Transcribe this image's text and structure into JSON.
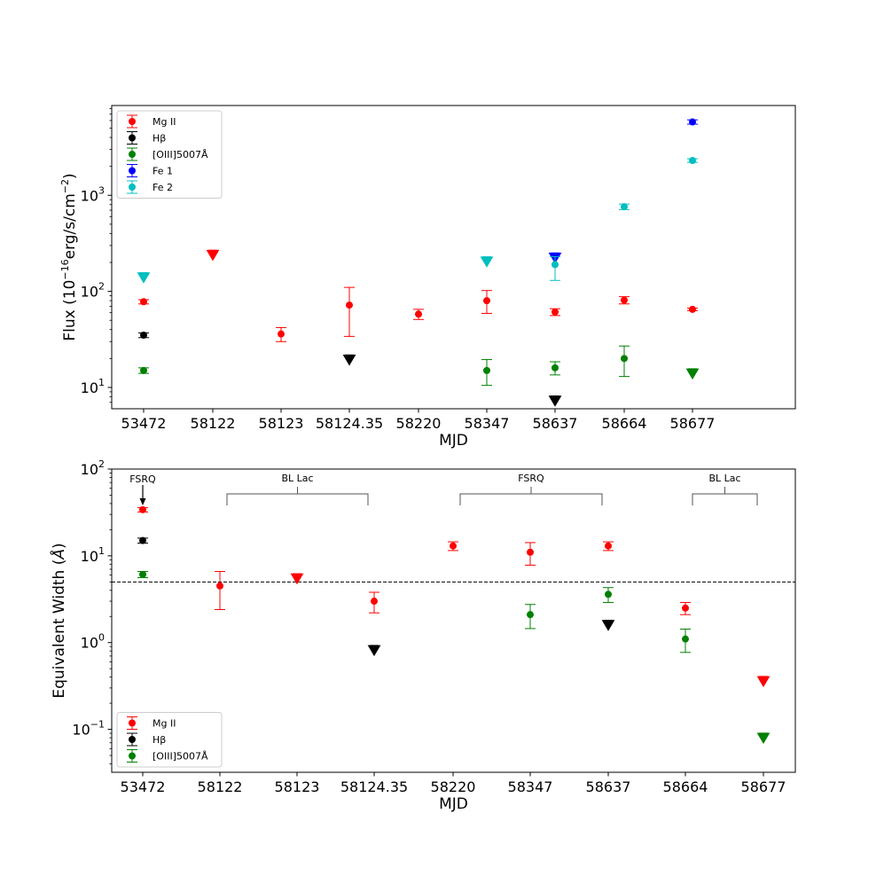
{
  "chart_data": [
    {
      "type": "scatter",
      "yscale": "log",
      "ylim": [
        6,
        8600
      ],
      "ylabel_main": "Flux (10",
      "ylabel_exp": "−16",
      "ylabel_unit": "erg/s/cm",
      "ylabel_exp2": "−2",
      "ylabel_close": ")",
      "xlabel": "MJD",
      "categories": [
        "53472",
        "58122",
        "58123",
        "58124.35",
        "58220",
        "58347",
        "58637",
        "58664",
        "58677"
      ],
      "ytick_values": [
        10,
        100,
        1000
      ],
      "ytick_exp": [
        "1",
        "2",
        "3"
      ],
      "legend_position": "upper-left",
      "series": [
        {
          "name": "Mg II",
          "color": "#ff0000",
          "points": [
            {
              "x": 0,
              "y": 78,
              "lo": 74,
              "hi": 82
            },
            {
              "x": 1,
              "y": 240,
              "upper_limit": true
            },
            {
              "x": 2,
              "y": 36,
              "lo": 30,
              "hi": 42
            },
            {
              "x": 3,
              "y": 72,
              "lo": 34,
              "hi": 110
            },
            {
              "x": 4,
              "y": 58,
              "lo": 51,
              "hi": 65
            },
            {
              "x": 5,
              "y": 80,
              "lo": 59,
              "hi": 102
            },
            {
              "x": 6,
              "y": 61,
              "lo": 56,
              "hi": 66
            },
            {
              "x": 7,
              "y": 81,
              "lo": 74,
              "hi": 88
            },
            {
              "x": 8,
              "y": 65,
              "lo": 63,
              "hi": 67
            }
          ]
        },
        {
          "name": "Hβ",
          "color": "#000000",
          "points": [
            {
              "x": 0,
              "y": 35,
              "lo": 33,
              "hi": 37
            },
            {
              "x": 3,
              "y": 19.5,
              "upper_limit": true
            },
            {
              "x": 6,
              "y": 7.3,
              "upper_limit": true
            }
          ]
        },
        {
          "name": "[OIII]5007Å",
          "color": "#008000",
          "points": [
            {
              "x": 0,
              "y": 15,
              "lo": 14,
              "hi": 16
            },
            {
              "x": 5,
              "y": 15,
              "lo": 10.5,
              "hi": 19.5
            },
            {
              "x": 6,
              "y": 16,
              "lo": 13.5,
              "hi": 18.5
            },
            {
              "x": 7,
              "y": 20,
              "lo": 13,
              "hi": 27
            },
            {
              "x": 8,
              "y": 14,
              "upper_limit": true
            }
          ]
        },
        {
          "name": "Fe 1",
          "color": "#0000ff",
          "points": [
            {
              "x": 6,
              "y": 225,
              "upper_limit": true
            },
            {
              "x": 8,
              "y": 5800,
              "lo": 5500,
              "hi": 6100
            }
          ]
        },
        {
          "name": "Fe 2",
          "color": "#00bfbf",
          "points": [
            {
              "x": 0,
              "y": 140,
              "upper_limit": true
            },
            {
              "x": 5,
              "y": 205,
              "upper_limit": true
            },
            {
              "x": 6,
              "y": 190,
              "lo": 130,
              "hi": 230
            },
            {
              "x": 7,
              "y": 760,
              "lo": 710,
              "hi": 810
            },
            {
              "x": 8,
              "y": 2300,
              "lo": 2200,
              "hi": 2400
            }
          ]
        }
      ]
    },
    {
      "type": "scatter",
      "yscale": "log",
      "ylim": [
        0.032,
        100
      ],
      "ylabel_main": "Equivalent Width (",
      "ylabel_unit": "Å",
      "ylabel_close": ")",
      "xlabel": "MJD",
      "categories": [
        "53472",
        "58122",
        "58123",
        "58124.35",
        "58220",
        "58347",
        "58637",
        "58664",
        "58677"
      ],
      "ytick_values": [
        0.1,
        1,
        10,
        100
      ],
      "ytick_base": [
        "10",
        "10",
        "10",
        "10"
      ],
      "ytick_exp": [
        "−1",
        "0",
        "1",
        "2"
      ],
      "threshold": 5,
      "legend_position": "lower-left",
      "annotations": [
        {
          "label": "FSRQ",
          "type": "arrow",
          "x": 0
        },
        {
          "label": "BL Lac",
          "type": "bracket",
          "x0": 1,
          "x1": 3
        },
        {
          "label": "FSRQ",
          "type": "bracket",
          "x0": 4,
          "x1": 6
        },
        {
          "label": "BL Lac",
          "type": "bracket",
          "x0": 7,
          "x1": 8
        }
      ],
      "series": [
        {
          "name": "Mg II",
          "color": "#ff0000",
          "points": [
            {
              "x": 0,
              "y": 34,
              "lo": 32,
              "hi": 36
            },
            {
              "x": 1,
              "y": 4.5,
              "lo": 2.4,
              "hi": 6.6
            },
            {
              "x": 2,
              "y": 5.5,
              "upper_limit": true
            },
            {
              "x": 3,
              "y": 3.0,
              "lo": 2.2,
              "hi": 3.8
            },
            {
              "x": 4,
              "y": 13,
              "lo": 11.5,
              "hi": 14.5
            },
            {
              "x": 5,
              "y": 11,
              "lo": 7.8,
              "hi": 14.2
            },
            {
              "x": 6,
              "y": 13,
              "lo": 11.5,
              "hi": 14.5
            },
            {
              "x": 7,
              "y": 2.5,
              "lo": 2.1,
              "hi": 2.9
            },
            {
              "x": 8,
              "y": 0.36,
              "upper_limit": true
            }
          ]
        },
        {
          "name": "Hβ",
          "color": "#000000",
          "points": [
            {
              "x": 0,
              "y": 15,
              "lo": 14,
              "hi": 16
            },
            {
              "x": 3,
              "y": 0.82,
              "upper_limit": true
            },
            {
              "x": 6,
              "y": 1.6,
              "upper_limit": true
            }
          ]
        },
        {
          "name": "[OIII]5007Å",
          "color": "#008000",
          "points": [
            {
              "x": 0,
              "y": 6.1,
              "lo": 5.6,
              "hi": 6.6
            },
            {
              "x": 5,
              "y": 2.1,
              "lo": 1.45,
              "hi": 2.75
            },
            {
              "x": 6,
              "y": 3.6,
              "lo": 2.9,
              "hi": 4.3
            },
            {
              "x": 7,
              "y": 1.1,
              "lo": 0.77,
              "hi": 1.43
            },
            {
              "x": 8,
              "y": 0.08,
              "upper_limit": true
            }
          ]
        }
      ]
    }
  ]
}
